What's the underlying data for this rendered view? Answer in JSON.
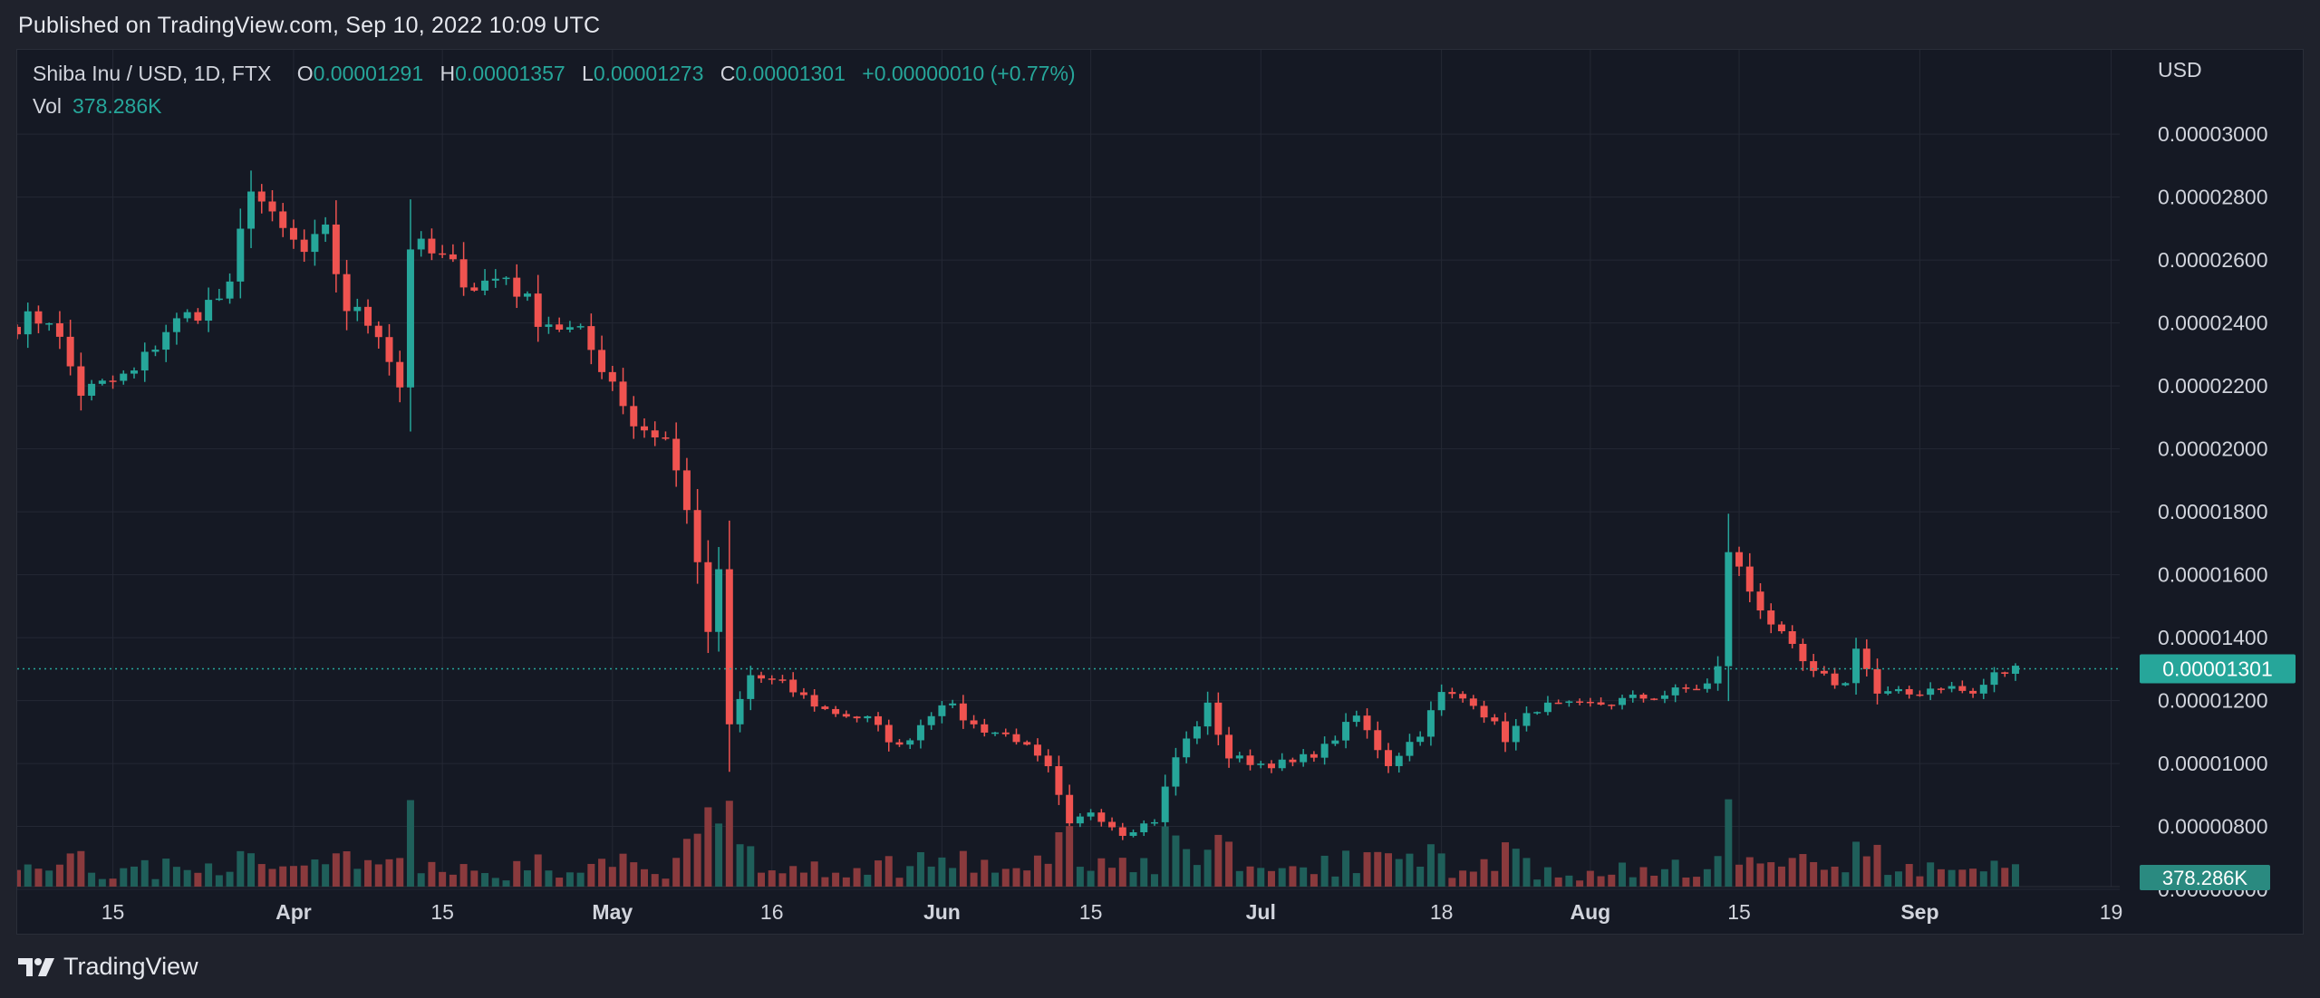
{
  "header": {
    "published": "Published on TradingView.com, Sep 10, 2022 10:09 UTC"
  },
  "legend": {
    "symbol": "Shiba Inu / USD, 1D, FTX",
    "open_label": "O",
    "open": "0.00001291",
    "high_label": "H",
    "high": "0.00001357",
    "low_label": "L",
    "low": "0.00001273",
    "close_label": "C",
    "close": "0.00001301",
    "change": "+0.00000010 (+0.77%)",
    "volume_label": "Vol",
    "volume": "378.286K"
  },
  "brand": {
    "name": "TradingView"
  },
  "colors": {
    "up": "#26a69a",
    "down": "#ef5350",
    "up_volume": "#1f5f5a",
    "down_volume": "#8a3a3d",
    "grid": "#242834",
    "background": "#151924",
    "text": "#d1d4dc"
  },
  "chart_data": {
    "type": "candlestick",
    "currency_label": "USD",
    "ylim": [
      5.8e-06,
      3.13e-05
    ],
    "y_ticks": [
      "0.00000600",
      "0.00000800",
      "0.00001000",
      "0.00001200",
      "0.00001400",
      "0.00001600",
      "0.00001800",
      "0.00002000",
      "0.00002200",
      "0.00002400",
      "0.00002600",
      "0.00002800",
      "0.00003000"
    ],
    "x_ticks": [
      {
        "label": "15",
        "date": "2022-03-15"
      },
      {
        "label": "Apr",
        "date": "2022-04-01"
      },
      {
        "label": "15",
        "date": "2022-04-15"
      },
      {
        "label": "May",
        "date": "2022-05-01"
      },
      {
        "label": "16",
        "date": "2022-05-16"
      },
      {
        "label": "Jun",
        "date": "2022-06-01"
      },
      {
        "label": "15",
        "date": "2022-06-15"
      },
      {
        "label": "Jul",
        "date": "2022-07-01"
      },
      {
        "label": "18",
        "date": "2022-07-18"
      },
      {
        "label": "Aug",
        "date": "2022-08-01"
      },
      {
        "label": "15",
        "date": "2022-08-15"
      },
      {
        "label": "Sep",
        "date": "2022-09-01"
      },
      {
        "label": "19",
        "date": "2022-09-19"
      }
    ],
    "x_range": [
      "2022-03-06",
      "2022-09-21"
    ],
    "last_price": "0.00001301",
    "last_volume": "378.286K",
    "close_key": [
      [
        "2022-03-06",
        2.4
      ],
      [
        "2022-03-09",
        2.42
      ],
      [
        "2022-03-12",
        2.18
      ],
      [
        "2022-03-14",
        2.2
      ],
      [
        "2022-03-17",
        2.24
      ],
      [
        "2022-03-20",
        2.38
      ],
      [
        "2022-03-23",
        2.44
      ],
      [
        "2022-03-26",
        2.5
      ],
      [
        "2022-03-28",
        2.85
      ],
      [
        "2022-03-30",
        2.72
      ],
      [
        "2022-04-02",
        2.62
      ],
      [
        "2022-04-04",
        2.68
      ],
      [
        "2022-04-06",
        2.45
      ],
      [
        "2022-04-09",
        2.38
      ],
      [
        "2022-04-11",
        2.2
      ],
      [
        "2022-04-12",
        2.65
      ],
      [
        "2022-04-15",
        2.6
      ],
      [
        "2022-04-18",
        2.52
      ],
      [
        "2022-04-21",
        2.55
      ],
      [
        "2022-04-24",
        2.42
      ],
      [
        "2022-04-28",
        2.36
      ],
      [
        "2022-05-01",
        2.22
      ],
      [
        "2022-05-03",
        2.08
      ],
      [
        "2022-05-06",
        2.03
      ],
      [
        "2022-05-08",
        1.82
      ],
      [
        "2022-05-10",
        1.42
      ],
      [
        "2022-05-11",
        1.6
      ],
      [
        "2022-05-12",
        1.12
      ],
      [
        "2022-05-14",
        1.28
      ],
      [
        "2022-05-17",
        1.25
      ],
      [
        "2022-05-21",
        1.17
      ],
      [
        "2022-05-25",
        1.14
      ],
      [
        "2022-05-28",
        1.05
      ],
      [
        "2022-06-01",
        1.2
      ],
      [
        "2022-06-04",
        1.12
      ],
      [
        "2022-06-08",
        1.08
      ],
      [
        "2022-06-11",
        0.98
      ],
      [
        "2022-06-13",
        0.8
      ],
      [
        "2022-06-15",
        0.85
      ],
      [
        "2022-06-18",
        0.78
      ],
      [
        "2022-06-21",
        0.82
      ],
      [
        "2022-06-23",
        1.02
      ],
      [
        "2022-06-26",
        1.18
      ],
      [
        "2022-06-28",
        1.02
      ],
      [
        "2022-07-01",
        1.0
      ],
      [
        "2022-07-04",
        1.0
      ],
      [
        "2022-07-07",
        1.05
      ],
      [
        "2022-07-10",
        1.15
      ],
      [
        "2022-07-13",
        1.0
      ],
      [
        "2022-07-16",
        1.1
      ],
      [
        "2022-07-18",
        1.22
      ],
      [
        "2022-07-21",
        1.2
      ],
      [
        "2022-07-24",
        1.08
      ],
      [
        "2022-07-27",
        1.18
      ],
      [
        "2022-07-31",
        1.18
      ],
      [
        "2022-08-04",
        1.2
      ],
      [
        "2022-08-08",
        1.22
      ],
      [
        "2022-08-12",
        1.25
      ],
      [
        "2022-08-13",
        1.3
      ],
      [
        "2022-08-14",
        1.68
      ],
      [
        "2022-08-16",
        1.55
      ],
      [
        "2022-08-19",
        1.4
      ],
      [
        "2022-08-22",
        1.28
      ],
      [
        "2022-08-25",
        1.25
      ],
      [
        "2022-08-26",
        1.38
      ],
      [
        "2022-08-28",
        1.22
      ],
      [
        "2022-08-31",
        1.22
      ],
      [
        "2022-09-03",
        1.25
      ],
      [
        "2022-09-06",
        1.22
      ],
      [
        "2022-09-08",
        1.28
      ],
      [
        "2022-09-10",
        1.301
      ]
    ]
  }
}
